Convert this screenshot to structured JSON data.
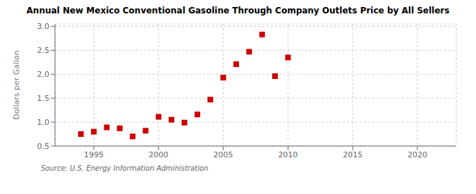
{
  "chart_data": {
    "type": "scatter",
    "title": "Annual New Mexico Conventional Gasoline Through Company Outlets Price by All Sellers",
    "ylabel": "Dollars per Gallon",
    "source": "Source: U.S. Energy Information Administration",
    "x": [
      1994,
      1995,
      1996,
      1997,
      1998,
      1999,
      2000,
      2001,
      2002,
      2003,
      2004,
      2005,
      2006,
      2007,
      2008,
      2009,
      2010
    ],
    "values": [
      0.75,
      0.8,
      0.89,
      0.87,
      0.7,
      0.82,
      1.11,
      1.05,
      0.99,
      1.16,
      1.47,
      1.93,
      2.21,
      2.47,
      2.83,
      1.96,
      2.35
    ],
    "color": "#cc0000",
    "marker": "square",
    "xlim": [
      1992,
      2023
    ],
    "ylim": [
      0.5,
      3.05
    ],
    "xticks": [
      1995,
      2000,
      2005,
      2010,
      2015,
      2020
    ],
    "yticks": [
      0.5,
      {
        "value": 1.0,
        "label": "1.0"
      },
      1.5,
      {
        "value": 2.0,
        "label": "2.0"
      },
      2.5,
      {
        "value": 3.0,
        "label": "3.0"
      }
    ],
    "grid": true
  }
}
